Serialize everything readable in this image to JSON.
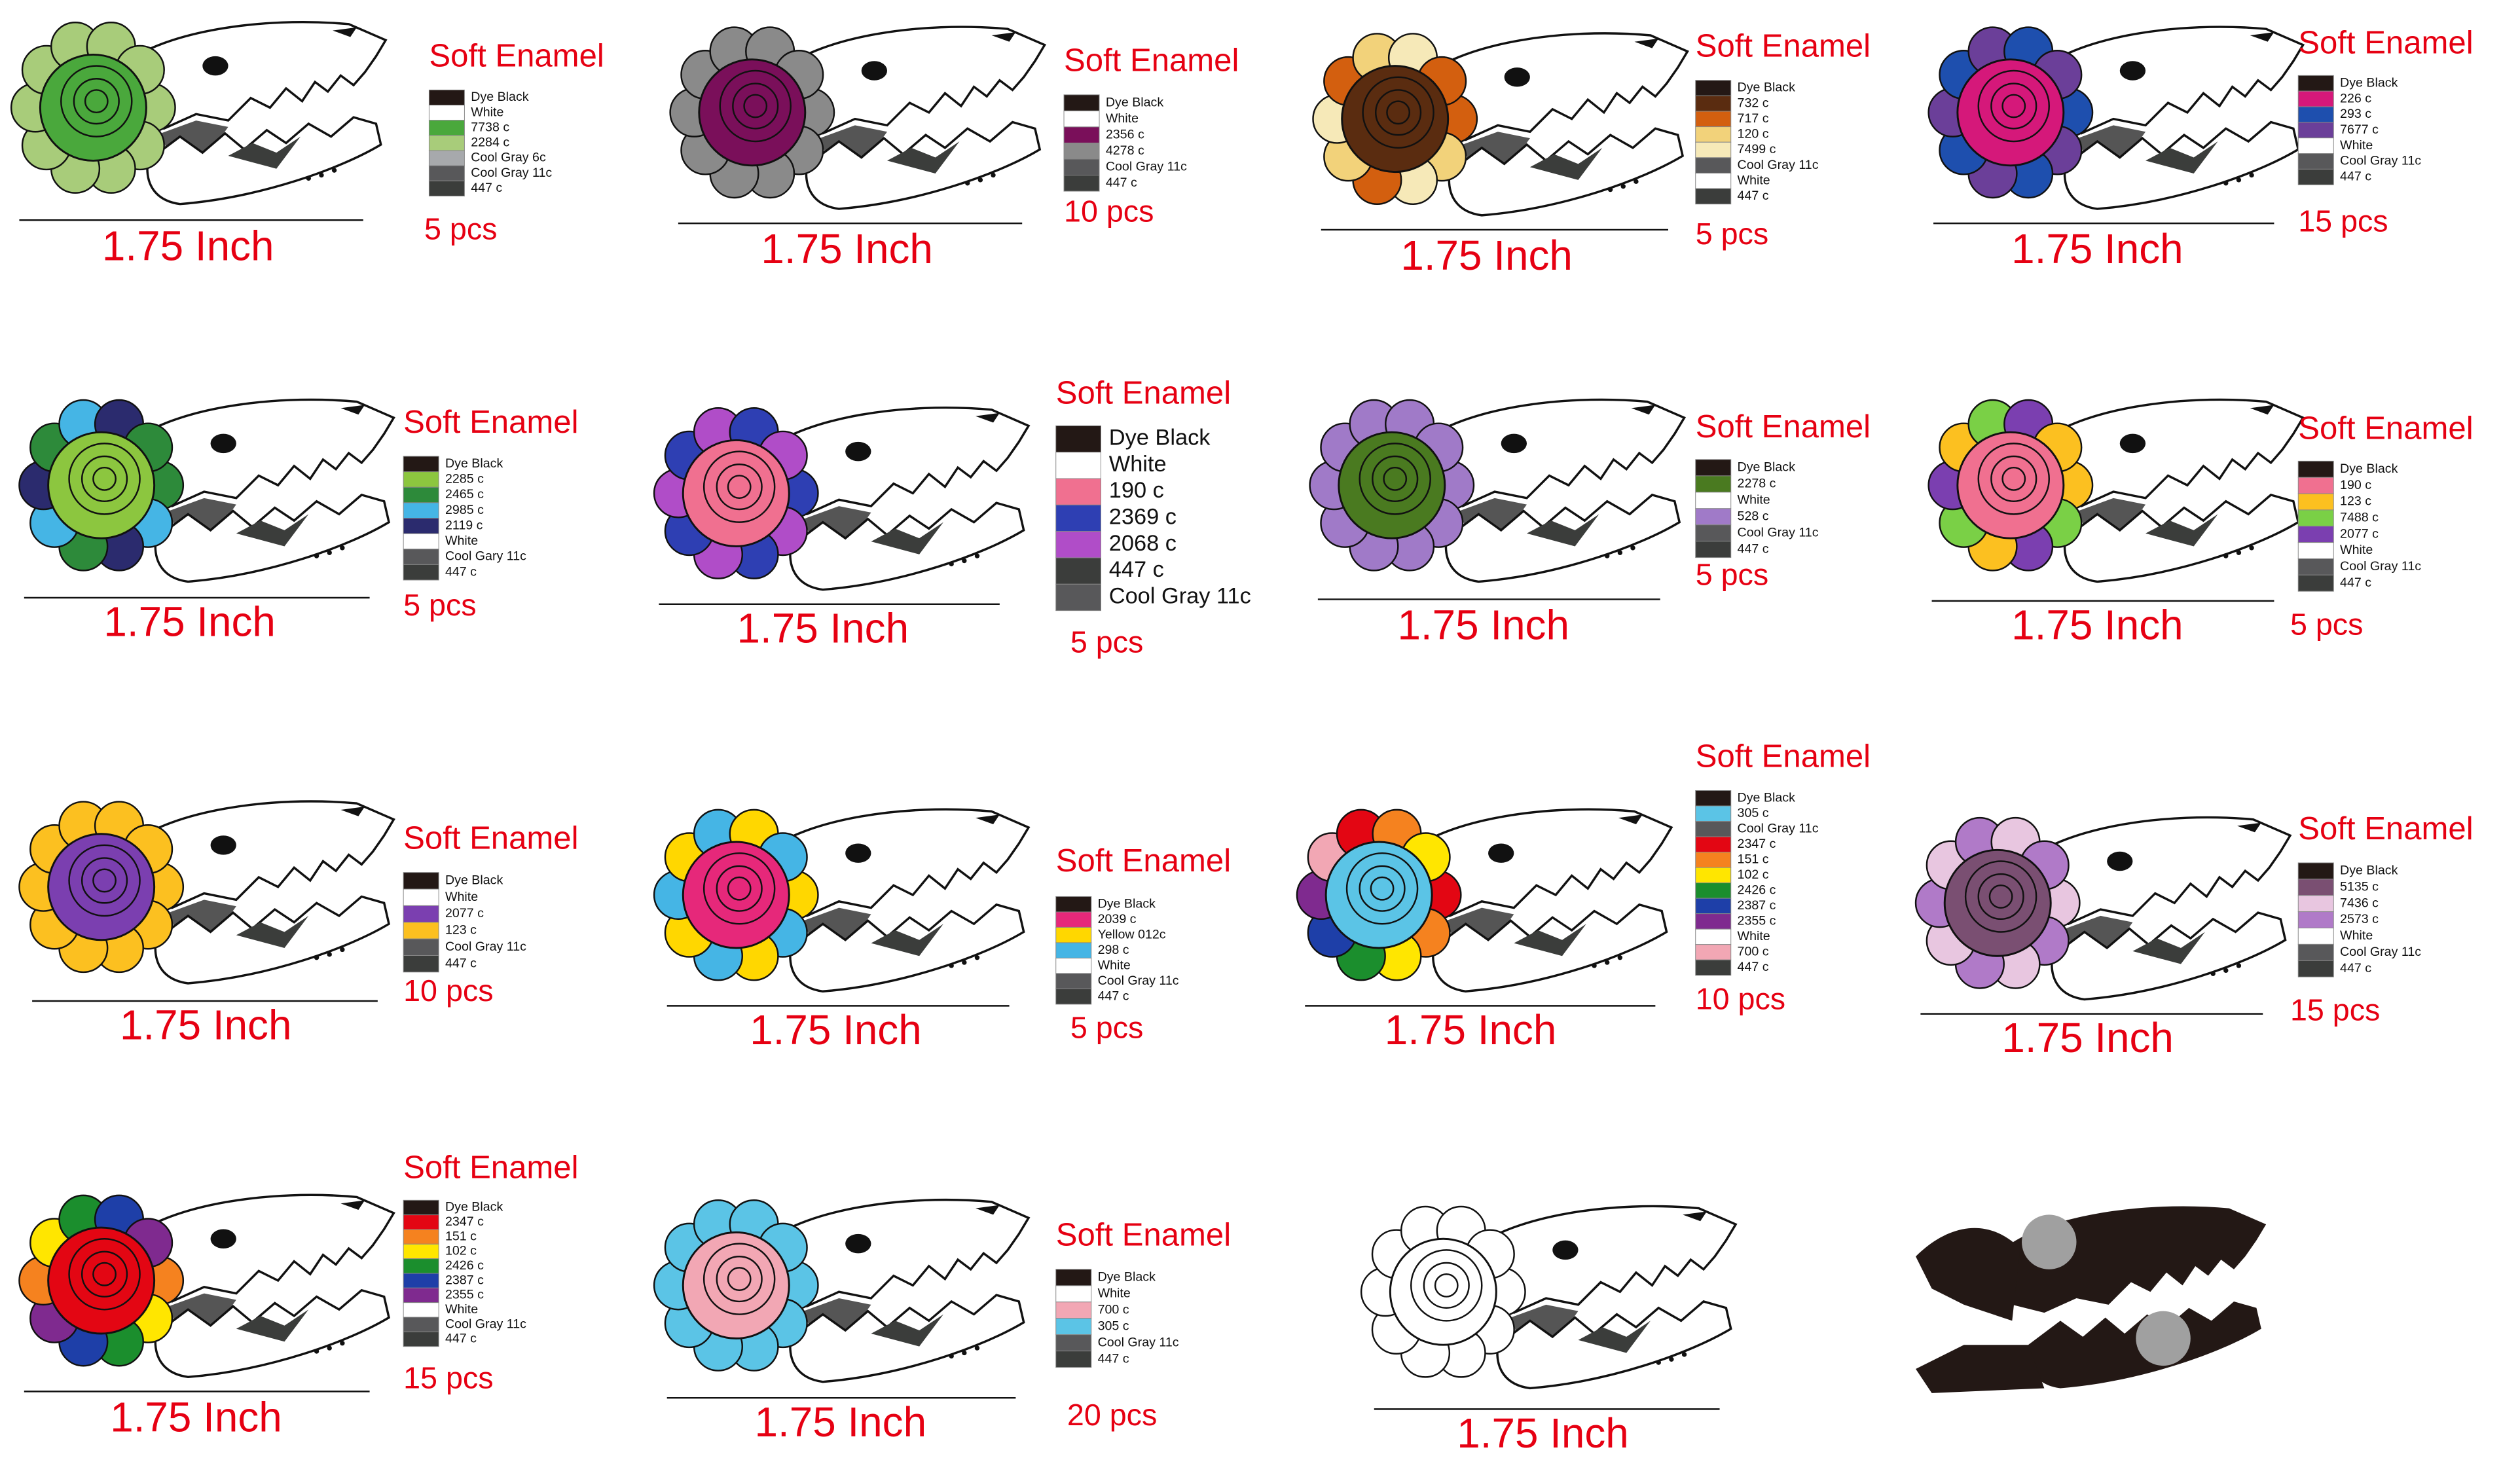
{
  "designs": [
    {
      "finish": "Soft Enamel",
      "size": "1.75 Inch",
      "quantity": "5 pcs",
      "colors": [
        {
          "name": "Dye Black",
          "swatch": "#231815"
        },
        {
          "name": "White",
          "swatch": "#ffffff"
        },
        {
          "name": "7738 c",
          "swatch": "#4aa83c"
        },
        {
          "name": "2284 c",
          "swatch": "#a8cc7a"
        },
        {
          "name": "Cool Gray 6c",
          "swatch": "#a7a9ac"
        },
        {
          "name": "Cool Gray 11c",
          "swatch": "#58585a"
        },
        {
          "name": "447 c",
          "swatch": "#3b3d3b"
        }
      ]
    },
    {
      "finish": "Soft Enamel",
      "size": "1.75 Inch",
      "quantity": "10 pcs",
      "colors": [
        {
          "name": "Dye Black",
          "swatch": "#231815"
        },
        {
          "name": "White",
          "swatch": "#ffffff"
        },
        {
          "name": "2356 c",
          "swatch": "#7a0f5a"
        },
        {
          "name": "4278 c",
          "swatch": "#8a8a8a"
        },
        {
          "name": "Cool Gray 11c",
          "swatch": "#58585a"
        },
        {
          "name": "447 c",
          "swatch": "#3b3d3b"
        }
      ]
    },
    {
      "finish": "Soft Enamel",
      "size": "1.75 Inch",
      "quantity": "5 pcs",
      "colors": [
        {
          "name": "Dye Black",
          "swatch": "#231815"
        },
        {
          "name": "732 c",
          "swatch": "#5a2c10"
        },
        {
          "name": "717 c",
          "swatch": "#d35f0f"
        },
        {
          "name": "120 c",
          "swatch": "#f2d27a"
        },
        {
          "name": "7499 c",
          "swatch": "#f6e9b8"
        },
        {
          "name": "Cool Gray 11c",
          "swatch": "#58585a"
        },
        {
          "name": "White",
          "swatch": "#ffffff"
        },
        {
          "name": "447 c",
          "swatch": "#3b3d3b"
        }
      ]
    },
    {
      "finish": "Soft Enamel",
      "size": "1.75 Inch",
      "quantity": "15 pcs",
      "colors": [
        {
          "name": "Dye Black",
          "swatch": "#231815"
        },
        {
          "name": "226 c",
          "swatch": "#d5187a"
        },
        {
          "name": "293 c",
          "swatch": "#1e4fae"
        },
        {
          "name": "7677 c",
          "swatch": "#6b3f99"
        },
        {
          "name": "White",
          "swatch": "#ffffff"
        },
        {
          "name": "Cool Gray 11c",
          "swatch": "#58585a"
        },
        {
          "name": "447 c",
          "swatch": "#3b3d3b"
        }
      ]
    },
    {
      "finish": "Soft Enamel",
      "size": "1.75 Inch",
      "quantity": "5 pcs",
      "colors": [
        {
          "name": "Dye Black",
          "swatch": "#231815"
        },
        {
          "name": "2285 c",
          "swatch": "#8cc63f"
        },
        {
          "name": "2465 c",
          "swatch": "#2d8a3a"
        },
        {
          "name": "2985 c",
          "swatch": "#45b5e5"
        },
        {
          "name": "2119 c",
          "swatch": "#2b2b6e"
        },
        {
          "name": "White",
          "swatch": "#ffffff"
        },
        {
          "name": "Cool Gary 11c",
          "swatch": "#58585a"
        },
        {
          "name": "447 c",
          "swatch": "#3b3d3b"
        }
      ]
    },
    {
      "finish": "Soft Enamel",
      "size": "1.75 Inch",
      "quantity": "5 pcs",
      "colors": [
        {
          "name": "Dye Black",
          "swatch": "#231815"
        },
        {
          "name": "White",
          "swatch": "#ffffff"
        },
        {
          "name": "190 c",
          "swatch": "#f07090"
        },
        {
          "name": "2369 c",
          "swatch": "#2e3fb3"
        },
        {
          "name": "2068 c",
          "swatch": "#b04dc8"
        },
        {
          "name": "447 c",
          "swatch": "#3b3d3b"
        },
        {
          "name": "Cool Gray 11c",
          "swatch": "#58585a"
        }
      ]
    },
    {
      "finish": "Soft Enamel",
      "size": "1.75 Inch",
      "quantity": "5 pcs",
      "colors": [
        {
          "name": "Dye Black",
          "swatch": "#231815"
        },
        {
          "name": "2278 c",
          "swatch": "#4a7a20"
        },
        {
          "name": "White",
          "swatch": "#ffffff"
        },
        {
          "name": "528 c",
          "swatch": "#a07ac8"
        },
        {
          "name": "Cool Gray 11c",
          "swatch": "#58585a"
        },
        {
          "name": "447 c",
          "swatch": "#3b3d3b"
        }
      ]
    },
    {
      "finish": "Soft Enamel",
      "size": "1.75 Inch",
      "quantity": "5 pcs",
      "colors": [
        {
          "name": "Dye Black",
          "swatch": "#231815"
        },
        {
          "name": "190 c",
          "swatch": "#f07090"
        },
        {
          "name": "123 c",
          "swatch": "#fcc020"
        },
        {
          "name": "7488 c",
          "swatch": "#7ad046"
        },
        {
          "name": "2077 c",
          "swatch": "#7b3fb0"
        },
        {
          "name": "White",
          "swatch": "#ffffff"
        },
        {
          "name": "Cool Gray 11c",
          "swatch": "#58585a"
        },
        {
          "name": "447 c",
          "swatch": "#3b3d3b"
        }
      ]
    },
    {
      "finish": "Soft Enamel",
      "size": "1.75 Inch",
      "quantity": "10 pcs",
      "colors": [
        {
          "name": "Dye Black",
          "swatch": "#231815"
        },
        {
          "name": "White",
          "swatch": "#ffffff"
        },
        {
          "name": "2077 c",
          "swatch": "#7b3fb0"
        },
        {
          "name": "123 c",
          "swatch": "#fcc020"
        },
        {
          "name": "Cool Gray 11c",
          "swatch": "#58585a"
        },
        {
          "name": "447 c",
          "swatch": "#3b3d3b"
        }
      ]
    },
    {
      "finish": "Soft Enamel",
      "size": "1.75 Inch",
      "quantity": "5 pcs",
      "colors": [
        {
          "name": "Dye Black",
          "swatch": "#231815"
        },
        {
          "name": "2039 c",
          "swatch": "#e6287a"
        },
        {
          "name": "Yellow 012c",
          "swatch": "#ffd700"
        },
        {
          "name": "298 c",
          "swatch": "#45b5e5"
        },
        {
          "name": "White",
          "swatch": "#ffffff"
        },
        {
          "name": "Cool Gray 11c",
          "swatch": "#58585a"
        },
        {
          "name": "447 c",
          "swatch": "#3b3d3b"
        }
      ]
    },
    {
      "finish": "Soft Enamel",
      "size": "1.75 Inch",
      "quantity": "10 pcs",
      "colors": [
        {
          "name": "Dye Black",
          "swatch": "#231815"
        },
        {
          "name": "305 c",
          "swatch": "#5bc4e6"
        },
        {
          "name": "Cool Gray 11c",
          "swatch": "#58585a"
        },
        {
          "name": "2347 c",
          "swatch": "#e30613"
        },
        {
          "name": "151 c",
          "swatch": "#f5821f"
        },
        {
          "name": "102 c",
          "swatch": "#ffe600"
        },
        {
          "name": "2426 c",
          "swatch": "#1b8e2d"
        },
        {
          "name": "2387 c",
          "swatch": "#1e3fa8"
        },
        {
          "name": "2355 c",
          "swatch": "#7f2a8f"
        },
        {
          "name": "White",
          "swatch": "#ffffff"
        },
        {
          "name": "700 c",
          "swatch": "#f2a7b4"
        },
        {
          "name": "447 c",
          "swatch": "#3b3d3b"
        }
      ]
    },
    {
      "finish": "Soft Enamel",
      "size": "1.75 Inch",
      "quantity": "15 pcs",
      "colors": [
        {
          "name": "Dye Black",
          "swatch": "#231815"
        },
        {
          "name": "5135 c",
          "swatch": "#7a4f72"
        },
        {
          "name": "7436 c",
          "swatch": "#e8c6e0"
        },
        {
          "name": "2573 c",
          "swatch": "#b07ac8"
        },
        {
          "name": "White",
          "swatch": "#ffffff"
        },
        {
          "name": "Cool Gray 11c",
          "swatch": "#58585a"
        },
        {
          "name": "447 c",
          "swatch": "#3b3d3b"
        }
      ]
    },
    {
      "finish": "Soft Enamel",
      "size": "1.75 Inch",
      "quantity": "15 pcs",
      "colors": [
        {
          "name": "Dye Black",
          "swatch": "#231815"
        },
        {
          "name": "2347 c",
          "swatch": "#e30613"
        },
        {
          "name": "151 c",
          "swatch": "#f5821f"
        },
        {
          "name": "102 c",
          "swatch": "#ffe600"
        },
        {
          "name": "2426 c",
          "swatch": "#1b8e2d"
        },
        {
          "name": "2387 c",
          "swatch": "#1e3fa8"
        },
        {
          "name": "2355 c",
          "swatch": "#7f2a8f"
        },
        {
          "name": "White",
          "swatch": "#ffffff"
        },
        {
          "name": "Cool Gray 11c",
          "swatch": "#58585a"
        },
        {
          "name": "447 c",
          "swatch": "#3b3d3b"
        }
      ]
    },
    {
      "finish": "Soft Enamel",
      "size": "1.75 Inch",
      "quantity": "20 pcs",
      "colors": [
        {
          "name": "Dye Black",
          "swatch": "#231815"
        },
        {
          "name": "White",
          "swatch": "#ffffff"
        },
        {
          "name": "700 c",
          "swatch": "#f2a7b4"
        },
        {
          "name": "305 c",
          "swatch": "#5bc4e6"
        },
        {
          "name": "Cool Gray 11c",
          "swatch": "#58585a"
        },
        {
          "name": "447 c",
          "swatch": "#3b3d3b"
        }
      ]
    }
  ],
  "blank": {
    "size": "1.75 Inch"
  }
}
